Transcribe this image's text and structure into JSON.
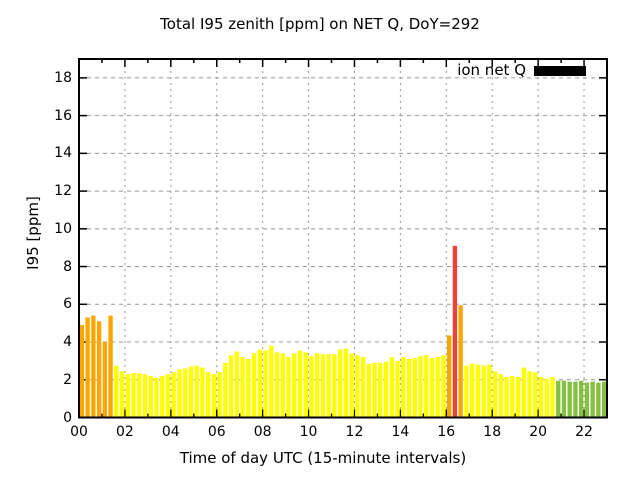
{
  "title": "Total I95 zenith [ppm] on NET Q, DoY=292",
  "legend": {
    "label": "ion net Q",
    "swatch_color": "#000000"
  },
  "axes": {
    "xlabel": "Time of day UTC (15-minute intervals)",
    "ylabel": "I95 [ppm]",
    "ytick_labels": [
      "0",
      "2",
      "4",
      "6",
      "8",
      "10",
      "12",
      "14",
      "16",
      "18"
    ],
    "ytick_values": [
      0,
      2,
      4,
      6,
      8,
      10,
      12,
      14,
      16,
      18
    ],
    "xtick_labels": [
      "00",
      "02",
      "04",
      "06",
      "08",
      "10",
      "12",
      "14",
      "16",
      "18",
      "20",
      "22"
    ],
    "xtick_hours": [
      0,
      2,
      4,
      6,
      8,
      10,
      12,
      14,
      16,
      18,
      20,
      22
    ]
  },
  "colors": {
    "yellow": "#ffff00",
    "orange": "#ffa500",
    "red": "#ee4237",
    "green": "#85c043",
    "grid": "#999999",
    "border": "#000000"
  },
  "chart_data": {
    "type": "bar",
    "title": "Total I95 zenith [ppm] on NET Q, DoY=292",
    "xlabel": "Time of day UTC (15-minute intervals)",
    "ylabel": "I95 [ppm]",
    "ylim": [
      0,
      19
    ],
    "xlim_hours": [
      0,
      23
    ],
    "interval_minutes": 15,
    "grid": true,
    "legend_position": "top-right-inside",
    "series_name": "ion net Q",
    "bars": [
      {
        "t": "00:00",
        "v": 4.9,
        "c": "orange"
      },
      {
        "t": "00:15",
        "v": 5.3,
        "c": "orange"
      },
      {
        "t": "00:30",
        "v": 5.4,
        "c": "orange"
      },
      {
        "t": "00:45",
        "v": 5.1,
        "c": "orange"
      },
      {
        "t": "01:00",
        "v": 4.0,
        "c": "orange"
      },
      {
        "t": "01:15",
        "v": 5.4,
        "c": "orange"
      },
      {
        "t": "01:30",
        "v": 2.75,
        "c": "yellow"
      },
      {
        "t": "01:45",
        "v": 2.45,
        "c": "yellow"
      },
      {
        "t": "02:00",
        "v": 2.3,
        "c": "yellow"
      },
      {
        "t": "02:15",
        "v": 2.35,
        "c": "yellow"
      },
      {
        "t": "02:30",
        "v": 2.35,
        "c": "yellow"
      },
      {
        "t": "02:45",
        "v": 2.3,
        "c": "yellow"
      },
      {
        "t": "03:00",
        "v": 2.2,
        "c": "yellow"
      },
      {
        "t": "03:15",
        "v": 2.1,
        "c": "yellow"
      },
      {
        "t": "03:30",
        "v": 2.2,
        "c": "yellow"
      },
      {
        "t": "03:45",
        "v": 2.3,
        "c": "yellow"
      },
      {
        "t": "04:00",
        "v": 2.4,
        "c": "yellow"
      },
      {
        "t": "04:15",
        "v": 2.55,
        "c": "yellow"
      },
      {
        "t": "04:30",
        "v": 2.6,
        "c": "yellow"
      },
      {
        "t": "04:45",
        "v": 2.7,
        "c": "yellow"
      },
      {
        "t": "05:00",
        "v": 2.75,
        "c": "yellow"
      },
      {
        "t": "05:15",
        "v": 2.65,
        "c": "yellow"
      },
      {
        "t": "05:30",
        "v": 2.4,
        "c": "yellow"
      },
      {
        "t": "05:45",
        "v": 2.3,
        "c": "yellow"
      },
      {
        "t": "06:00",
        "v": 2.4,
        "c": "yellow"
      },
      {
        "t": "06:15",
        "v": 2.9,
        "c": "yellow"
      },
      {
        "t": "06:30",
        "v": 3.3,
        "c": "yellow"
      },
      {
        "t": "06:45",
        "v": 3.5,
        "c": "yellow"
      },
      {
        "t": "07:00",
        "v": 3.2,
        "c": "yellow"
      },
      {
        "t": "07:15",
        "v": 3.1,
        "c": "yellow"
      },
      {
        "t": "07:30",
        "v": 3.4,
        "c": "yellow"
      },
      {
        "t": "07:45",
        "v": 3.6,
        "c": "yellow"
      },
      {
        "t": "08:00",
        "v": 3.55,
        "c": "yellow"
      },
      {
        "t": "08:15",
        "v": 3.8,
        "c": "yellow"
      },
      {
        "t": "08:30",
        "v": 3.45,
        "c": "yellow"
      },
      {
        "t": "08:45",
        "v": 3.4,
        "c": "yellow"
      },
      {
        "t": "09:00",
        "v": 3.2,
        "c": "yellow"
      },
      {
        "t": "09:15",
        "v": 3.4,
        "c": "yellow"
      },
      {
        "t": "09:30",
        "v": 3.55,
        "c": "yellow"
      },
      {
        "t": "09:45",
        "v": 3.45,
        "c": "yellow"
      },
      {
        "t": "10:00",
        "v": 3.25,
        "c": "yellow"
      },
      {
        "t": "10:15",
        "v": 3.4,
        "c": "yellow"
      },
      {
        "t": "10:30",
        "v": 3.35,
        "c": "yellow"
      },
      {
        "t": "10:45",
        "v": 3.35,
        "c": "yellow"
      },
      {
        "t": "11:00",
        "v": 3.35,
        "c": "yellow"
      },
      {
        "t": "11:15",
        "v": 3.6,
        "c": "yellow"
      },
      {
        "t": "11:30",
        "v": 3.65,
        "c": "yellow"
      },
      {
        "t": "11:45",
        "v": 3.4,
        "c": "yellow"
      },
      {
        "t": "12:00",
        "v": 3.3,
        "c": "yellow"
      },
      {
        "t": "12:15",
        "v": 3.2,
        "c": "yellow"
      },
      {
        "t": "12:30",
        "v": 2.85,
        "c": "yellow"
      },
      {
        "t": "12:45",
        "v": 2.9,
        "c": "yellow"
      },
      {
        "t": "13:00",
        "v": 2.9,
        "c": "yellow"
      },
      {
        "t": "13:15",
        "v": 2.95,
        "c": "yellow"
      },
      {
        "t": "13:30",
        "v": 3.2,
        "c": "yellow"
      },
      {
        "t": "13:45",
        "v": 3.0,
        "c": "yellow"
      },
      {
        "t": "14:00",
        "v": 3.2,
        "c": "yellow"
      },
      {
        "t": "14:15",
        "v": 3.1,
        "c": "yellow"
      },
      {
        "t": "14:30",
        "v": 3.15,
        "c": "yellow"
      },
      {
        "t": "14:45",
        "v": 3.25,
        "c": "yellow"
      },
      {
        "t": "15:00",
        "v": 3.3,
        "c": "yellow"
      },
      {
        "t": "15:15",
        "v": 3.15,
        "c": "yellow"
      },
      {
        "t": "15:30",
        "v": 3.2,
        "c": "yellow"
      },
      {
        "t": "15:45",
        "v": 3.3,
        "c": "yellow"
      },
      {
        "t": "16:00",
        "v": 4.35,
        "c": "orange"
      },
      {
        "t": "16:15",
        "v": 9.1,
        "c": "red"
      },
      {
        "t": "16:30",
        "v": 5.95,
        "c": "orange"
      },
      {
        "t": "16:45",
        "v": 2.75,
        "c": "yellow"
      },
      {
        "t": "17:00",
        "v": 2.85,
        "c": "yellow"
      },
      {
        "t": "17:15",
        "v": 2.8,
        "c": "yellow"
      },
      {
        "t": "17:30",
        "v": 2.75,
        "c": "yellow"
      },
      {
        "t": "17:45",
        "v": 2.8,
        "c": "yellow"
      },
      {
        "t": "18:00",
        "v": 2.45,
        "c": "yellow"
      },
      {
        "t": "18:15",
        "v": 2.3,
        "c": "yellow"
      },
      {
        "t": "18:30",
        "v": 2.15,
        "c": "yellow"
      },
      {
        "t": "18:45",
        "v": 2.2,
        "c": "yellow"
      },
      {
        "t": "19:00",
        "v": 2.15,
        "c": "yellow"
      },
      {
        "t": "19:15",
        "v": 2.65,
        "c": "yellow"
      },
      {
        "t": "19:30",
        "v": 2.45,
        "c": "yellow"
      },
      {
        "t": "19:45",
        "v": 2.4,
        "c": "yellow"
      },
      {
        "t": "20:00",
        "v": 2.15,
        "c": "yellow"
      },
      {
        "t": "20:15",
        "v": 2.05,
        "c": "yellow"
      },
      {
        "t": "20:30",
        "v": 2.15,
        "c": "yellow"
      },
      {
        "t": "20:45",
        "v": 1.95,
        "c": "green"
      },
      {
        "t": "21:00",
        "v": 1.95,
        "c": "green"
      },
      {
        "t": "21:15",
        "v": 1.9,
        "c": "green"
      },
      {
        "t": "21:30",
        "v": 1.9,
        "c": "green"
      },
      {
        "t": "21:45",
        "v": 1.95,
        "c": "green"
      },
      {
        "t": "22:00",
        "v": 1.85,
        "c": "green"
      },
      {
        "t": "22:15",
        "v": 1.9,
        "c": "green"
      },
      {
        "t": "22:30",
        "v": 1.85,
        "c": "green"
      },
      {
        "t": "22:45",
        "v": 1.9,
        "c": "green"
      }
    ]
  }
}
